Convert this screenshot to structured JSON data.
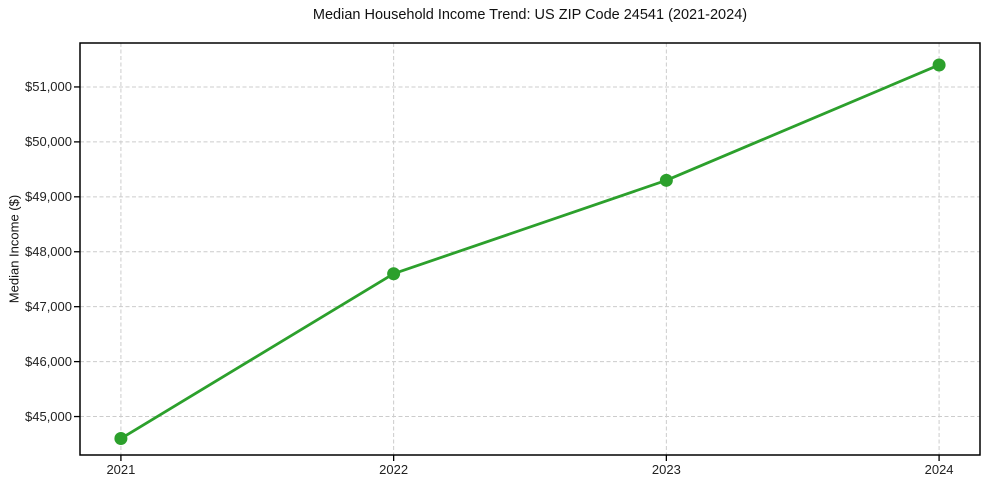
{
  "chart_data": {
    "type": "line",
    "title": "Median Household Income Trend: US ZIP Code 24541 (2021-2024)",
    "xlabel": "",
    "ylabel": "Median Income ($)",
    "x": [
      2021,
      2022,
      2023,
      2024
    ],
    "x_tick_labels": [
      "2021",
      "2022",
      "2023",
      "2024"
    ],
    "series": [
      {
        "name": "Median Household Income",
        "values": [
          44600,
          47600,
          49300,
          51400
        ]
      }
    ],
    "y_ticks": [
      45000,
      46000,
      47000,
      48000,
      49000,
      50000,
      51000
    ],
    "y_tick_labels": [
      "$45,000",
      "$46,000",
      "$47,000",
      "$48,000",
      "$49,000",
      "$50,000",
      "$51,000"
    ],
    "xlim": [
      2020.85,
      2024.15
    ],
    "ylim": [
      44300,
      51800
    ],
    "grid": true,
    "legend_position": "none",
    "line_color": "#2ca02c",
    "grid_color": "#cccccc",
    "axis_color": "#000000",
    "background_color": "#ffffff",
    "marker": "circle"
  }
}
